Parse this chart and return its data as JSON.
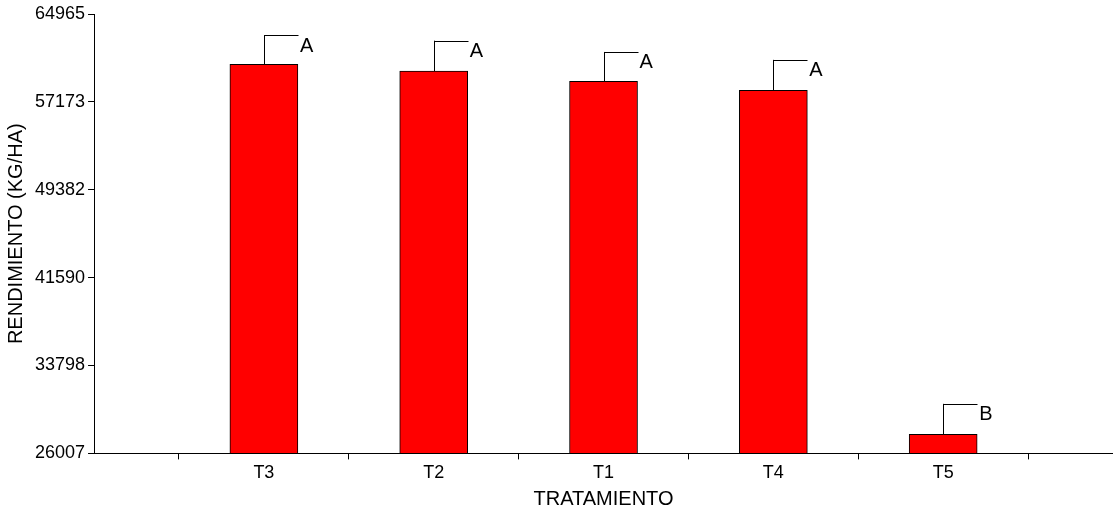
{
  "chart_data": {
    "type": "bar",
    "xlabel": "TRATAMIENTO",
    "ylabel": "RENDIMIENTO (KG/HA)",
    "categories": [
      "T3",
      "T2",
      "T1",
      "T4",
      "T5"
    ],
    "values": [
      60500,
      59900,
      59000,
      58200,
      27700
    ],
    "errors": [
      [
        60500,
        63100
      ],
      [
        59900,
        62600
      ],
      [
        59000,
        61600
      ],
      [
        58200,
        60900
      ],
      [
        27700,
        30400
      ]
    ],
    "color": "#ff0000",
    "ylim": [
      26007,
      64965
    ],
    "yticks": [
      26007,
      33798,
      41590,
      49382,
      57173,
      64965
    ],
    "grid": false,
    "legend": false,
    "annotations": [
      {
        "text": "A",
        "x": "T3",
        "y": 63100
      },
      {
        "text": "A",
        "x": "T2",
        "y": 62600
      },
      {
        "text": "A",
        "x": "T1",
        "y": 61600
      },
      {
        "text": "A",
        "x": "T4",
        "y": 60900
      },
      {
        "text": "B",
        "x": "T5",
        "y": 30400
      }
    ]
  }
}
